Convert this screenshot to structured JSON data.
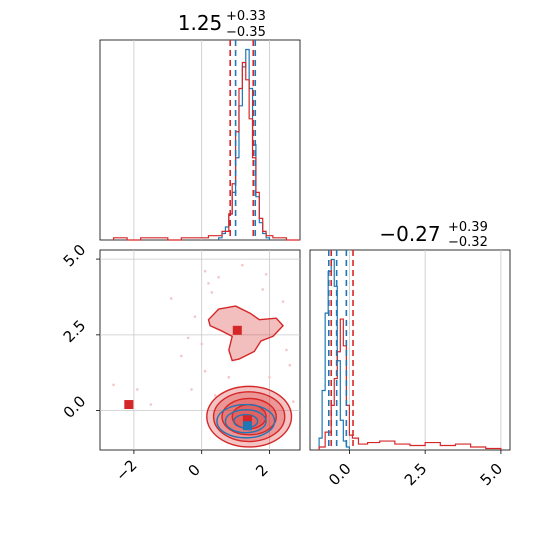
{
  "chart_data": {
    "type": "corner",
    "colors": {
      "red": "#d62728",
      "blue": "#1f77b4",
      "grid": "#c8c8c8",
      "scatter": "#f4c6c6"
    },
    "params": [
      {
        "title_value": "1.25",
        "title_plus": "+0.33",
        "title_minus": "−0.35",
        "range": [
          -3.0,
          2.9
        ]
      },
      {
        "title_value": "−0.27",
        "title_plus": "+0.39",
        "title_minus": "−0.32",
        "range": [
          -1.3,
          5.3
        ]
      }
    ],
    "x_ticks_param1": [
      {
        "v": -2,
        "label": "−2"
      },
      {
        "v": 0,
        "label": "0"
      },
      {
        "v": 2,
        "label": "2"
      }
    ],
    "y_ticks_param2": [
      {
        "v": 0.0,
        "label": "0.0"
      },
      {
        "v": 2.5,
        "label": "2.5"
      },
      {
        "v": 5.0,
        "label": "5.0"
      }
    ],
    "x_ticks_param2": [
      {
        "v": 0.0,
        "label": "0.0"
      },
      {
        "v": 2.5,
        "label": "2.5"
      },
      {
        "v": 5.0,
        "label": "5.0"
      }
    ],
    "hist1_blue": {
      "edges": [
        0.5,
        0.6,
        0.7,
        0.8,
        0.9,
        1.0,
        1.1,
        1.2,
        1.3,
        1.4,
        1.5,
        1.6,
        1.7,
        1.8,
        1.9,
        2.0
      ],
      "counts": [
        1,
        3,
        6,
        12,
        22,
        38,
        62,
        80,
        88,
        70,
        44,
        20,
        8,
        3,
        1
      ]
    },
    "hist1_red": {
      "edges": [
        -2.6,
        -2.2,
        -1.8,
        -1.4,
        -1.0,
        -0.6,
        -0.2,
        0.2,
        0.6,
        0.8,
        0.9,
        1.0,
        1.1,
        1.2,
        1.3,
        1.4,
        1.5,
        1.6,
        1.7,
        1.8,
        1.9,
        2.1,
        2.5,
        2.9
      ],
      "counts": [
        1,
        0,
        1,
        1,
        0,
        1,
        1,
        2,
        4,
        12,
        26,
        50,
        70,
        82,
        74,
        56,
        38,
        22,
        10,
        4,
        2,
        1,
        0
      ]
    },
    "hist1_lines_blue": [
      1.0,
      1.58
    ],
    "hist1_lines_red": [
      0.9,
      1.58
    ],
    "hist2_blue": {
      "edges": [
        -1.0,
        -0.9,
        -0.8,
        -0.7,
        -0.6,
        -0.5,
        -0.4,
        -0.3,
        -0.2,
        -0.1,
        0.0
      ],
      "counts": [
        8,
        40,
        92,
        120,
        128,
        110,
        60,
        20,
        6,
        2
      ]
    },
    "hist2_red": {
      "edges": [
        -1.0,
        -0.8,
        -0.6,
        -0.5,
        -0.4,
        -0.3,
        -0.2,
        -0.1,
        0.0,
        0.1,
        0.3,
        0.6,
        1.0,
        1.5,
        2.0,
        2.5,
        3.0,
        3.5,
        4.0,
        4.5,
        5.0
      ],
      "counts": [
        2,
        12,
        30,
        48,
        66,
        88,
        70,
        30,
        10,
        8,
        4,
        5,
        6,
        4,
        3,
        5,
        3,
        4,
        2,
        1
      ]
    },
    "hist2_lines_blue": [
      -0.68,
      -0.42,
      -0.1
    ],
    "hist2_lines_red": [
      -0.6,
      0.12
    ],
    "markers": [
      {
        "x": -2.15,
        "y": 0.2,
        "color": "red"
      },
      {
        "x": 1.05,
        "y": 2.65,
        "color": "red"
      },
      {
        "x": 1.35,
        "y": -0.3,
        "color": "red"
      },
      {
        "x": 1.35,
        "y": -0.5,
        "color": "blue"
      }
    ],
    "contours_red": [
      {
        "cx": 1.4,
        "cy": -0.2,
        "rx": 1.25,
        "ry": 1.0
      },
      {
        "cx": 1.4,
        "cy": -0.2,
        "rx": 1.05,
        "ry": 0.82
      },
      {
        "cx": 1.4,
        "cy": -0.2,
        "rx": 0.8,
        "ry": 0.6
      },
      {
        "cx": 1.4,
        "cy": -0.2,
        "rx": 0.5,
        "ry": 0.4
      }
    ],
    "contours_blue": [
      {
        "cx": 1.3,
        "cy": -0.35,
        "rx": 0.85,
        "ry": 0.55
      },
      {
        "cx": 1.3,
        "cy": -0.35,
        "rx": 0.6,
        "ry": 0.38
      },
      {
        "cx": 1.3,
        "cy": -0.35,
        "rx": 0.35,
        "ry": 0.22
      }
    ],
    "blob_red": {
      "points": [
        [
          0.2,
          3.0
        ],
        [
          0.5,
          3.35
        ],
        [
          1.0,
          3.45
        ],
        [
          1.45,
          3.2
        ],
        [
          1.7,
          3.0
        ],
        [
          2.2,
          3.05
        ],
        [
          2.4,
          2.8
        ],
        [
          2.1,
          2.45
        ],
        [
          1.75,
          2.3
        ],
        [
          1.55,
          1.95
        ],
        [
          1.1,
          1.7
        ],
        [
          0.9,
          1.65
        ],
        [
          0.8,
          2.0
        ],
        [
          0.9,
          2.45
        ],
        [
          0.55,
          2.65
        ],
        [
          0.25,
          2.8
        ]
      ]
    },
    "scatter_points": [
      [
        -2.6,
        0.85
      ],
      [
        -1.9,
        0.7
      ],
      [
        -1.5,
        0.2
      ],
      [
        -0.9,
        3.7
      ],
      [
        -0.6,
        1.8
      ],
      [
        0.1,
        4.6
      ],
      [
        0.2,
        4.2
      ],
      [
        0.3,
        3.9
      ],
      [
        0.5,
        4.4
      ],
      [
        1.2,
        4.8
      ],
      [
        1.8,
        4.0
      ],
      [
        2.4,
        3.6
      ],
      [
        2.6,
        1.5
      ],
      [
        2.0,
        1.1
      ],
      [
        0.1,
        1.3
      ],
      [
        -0.3,
        0.7
      ],
      [
        0.4,
        0.5
      ],
      [
        2.7,
        0.3
      ],
      [
        -0.4,
        2.4
      ],
      [
        1.9,
        4.5
      ],
      [
        0.8,
        1.1
      ],
      [
        2.5,
        2.0
      ],
      [
        -0.2,
        3.1
      ],
      [
        0.0,
        2.2
      ]
    ]
  }
}
